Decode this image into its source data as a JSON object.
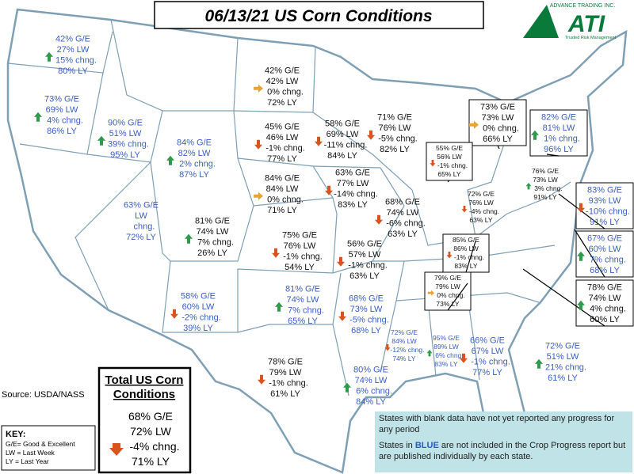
{
  "title": "06/13/21 US Corn Conditions",
  "logo": {
    "company": "ADVANCE TRADING INC.",
    "mark": "ATI",
    "tagline": "Trusted Risk Management"
  },
  "source": "Source: USDA/NASS",
  "key": {
    "heading": "KEY:",
    "lines": [
      "G/E= Good & Excellent",
      "LW = Last Week",
      "LY = Last Year"
    ]
  },
  "total": {
    "heading": [
      "Total US Corn",
      "Conditions"
    ],
    "ge": "68% G/E",
    "lw": "72% LW",
    "chng": "-4% chng.",
    "ly": "71% LY",
    "arrow": "down"
  },
  "note": {
    "line1": "States with blank data have not yet reported any progress for any period",
    "line2a": "States in ",
    "line2b": "BLUE",
    "line2c": " are not included in the Crop Progress report but are published individually by each state."
  },
  "states": [
    {
      "lines": [
        "42% G/E",
        "27% LW",
        "15% chng.",
        "80% LY"
      ],
      "color": "blue",
      "arrow": "up"
    },
    {
      "lines": [
        "73% G/E",
        "69% LW",
        "4% chng.",
        "86% LY"
      ],
      "color": "blue",
      "arrow": "up"
    },
    {
      "lines": [
        "90% G/E",
        "51% LW",
        "39% chng.",
        "95% LY"
      ],
      "color": "blue",
      "arrow": "up"
    },
    {
      "lines": [
        "84% G/E",
        "82% LW",
        "2% chng.",
        "87% LY"
      ],
      "color": "blue",
      "arrow": "up"
    },
    {
      "lines": [
        "42% G/E",
        "42% LW",
        "0% chng.",
        "72% LY"
      ],
      "color": "black",
      "arrow": "right"
    },
    {
      "lines": [
        "45% G/E",
        "46% LW",
        "-1% chng.",
        "77% LY"
      ],
      "color": "black",
      "arrow": "down"
    },
    {
      "lines": [
        "84% G/E",
        "84% LW",
        "0% chng.",
        "71% LY"
      ],
      "color": "black",
      "arrow": "right"
    },
    {
      "lines": [
        "63% G/E",
        "LW",
        "chng.",
        "72% LY"
      ],
      "color": "blue",
      "arrow": "none"
    },
    {
      "lines": [
        "81% G/E",
        "74% LW",
        "7% chng.",
        "26% LY"
      ],
      "color": "black",
      "arrow": "up"
    },
    {
      "lines": [
        "75% G/E",
        "76% LW",
        "-1% chng.",
        "54% LY"
      ],
      "color": "black",
      "arrow": "down"
    },
    {
      "lines": [
        "58% G/E",
        "60% LW",
        "-2% chng.",
        "39% LY"
      ],
      "color": "blue",
      "arrow": "down"
    },
    {
      "lines": [
        "81% G/E",
        "74% LW",
        "7% chng.",
        "65% LY"
      ],
      "color": "blue",
      "arrow": "up"
    },
    {
      "lines": [
        "78% G/E",
        "79% LW",
        "-1% chng.",
        "61% LY"
      ],
      "color": "black",
      "arrow": "down"
    },
    {
      "lines": [
        "58% G/E",
        "69% LW",
        "-11% chng.",
        "84% LY"
      ],
      "color": "black",
      "arrow": "down"
    },
    {
      "lines": [
        "63% G/E",
        "77% LW",
        "-14% chng.",
        "83% LY"
      ],
      "color": "black",
      "arrow": "down"
    },
    {
      "lines": [
        "56% G/E",
        "57% LW",
        "-1% chng.",
        "63% LY"
      ],
      "color": "black",
      "arrow": "down"
    },
    {
      "lines": [
        "68% G/E",
        "73% LW",
        "-5% chng.",
        "68% LY"
      ],
      "color": "blue",
      "arrow": "down"
    },
    {
      "lines": [
        "80% G/E",
        "74% LW",
        "6% chng.",
        "84% LY"
      ],
      "color": "blue",
      "arrow": "up"
    },
    {
      "lines": [
        "71% G/E",
        "76% LW",
        "-5% chng.",
        "82% LY"
      ],
      "color": "black",
      "arrow": "down"
    },
    {
      "lines": [
        "68% G/E",
        "74% LW",
        "-6% chng.",
        "63% LY"
      ],
      "color": "black",
      "arrow": "down"
    },
    {
      "lines": [
        "73% G/E",
        "73% LW",
        "0% chng.",
        "66% LY"
      ],
      "color": "black",
      "arrow": "right"
    },
    {
      "lines": [
        "55% G/E",
        "56% LW",
        "-1% chng.",
        "65% LY"
      ],
      "color": "black",
      "arrow": "down"
    },
    {
      "lines": [
        "72% G/E",
        "76% LW",
        "-4% chng.",
        "63% LY"
      ],
      "color": "black",
      "arrow": "down"
    },
    {
      "lines": [
        "85% G/E",
        "86% LW",
        "-1% chng.",
        "83% LY"
      ],
      "color": "black",
      "arrow": "down"
    },
    {
      "lines": [
        "79% G/E",
        "79% LW",
        "0% chng.",
        "73% LY"
      ],
      "color": "black",
      "arrow": "right"
    },
    {
      "lines": [
        "72% G/E",
        "84% LW",
        "-12% chng.",
        "74% LY"
      ],
      "color": "blue",
      "arrow": "down"
    },
    {
      "lines": [
        "95% G/E",
        "89% LW",
        "6% chng.",
        "83% LY"
      ],
      "color": "blue",
      "arrow": "up"
    },
    {
      "lines": [
        "66% G/E",
        "67% LW",
        "-1% chng.",
        "77% LY"
      ],
      "color": "blue",
      "arrow": "down"
    },
    {
      "lines": [
        "82% G/E",
        "81% LW",
        "1% chng.",
        "96% LY"
      ],
      "color": "blue",
      "arrow": "up"
    },
    {
      "lines": [
        "76% G/E",
        "73% LW",
        "3% chng.",
        "91% LY"
      ],
      "color": "black",
      "arrow": "up"
    },
    {
      "lines": [
        "83% G/E",
        "93% LW",
        "-10% chng.",
        "91% LY"
      ],
      "color": "blue",
      "arrow": "down"
    },
    {
      "lines": [
        "67% G/E",
        "60% LW",
        "7% chng.",
        "68% LY"
      ],
      "color": "blue",
      "arrow": "up"
    },
    {
      "lines": [
        "78% G/E",
        "74% LW",
        "4% chng.",
        "60% LY"
      ],
      "color": "black",
      "arrow": "up"
    },
    {
      "lines": [
        "72% G/E",
        "51% LW",
        "21% chng.",
        "61% LY"
      ],
      "color": "blue",
      "arrow": "up"
    }
  ]
}
